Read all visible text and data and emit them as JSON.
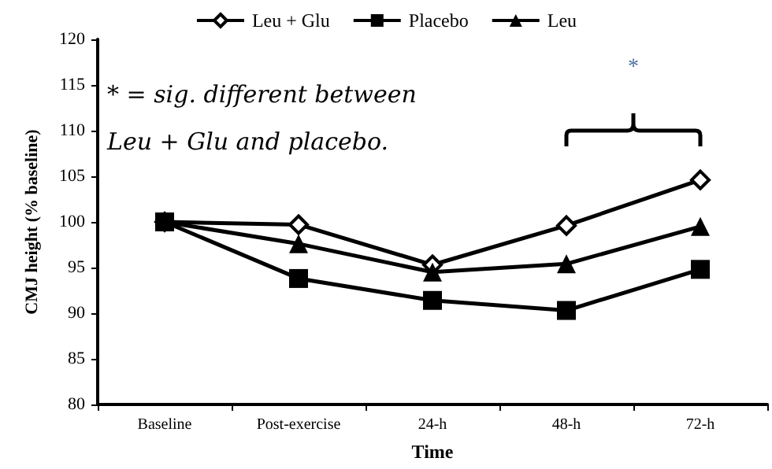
{
  "chart_data": {
    "type": "line",
    "xlabel": "Time",
    "ylabel": "CMJ height (% baseline)",
    "categories": [
      "Baseline",
      "Post-exercise",
      "24-h",
      "48-h",
      "72-h"
    ],
    "series": [
      {
        "name": "Leu + Glu",
        "color": "#000000",
        "marker": "diamond",
        "values": [
          100,
          99.7,
          95.3,
          99.6,
          104.6
        ]
      },
      {
        "name": "Placebo",
        "color": "#000000",
        "marker": "square",
        "values": [
          100,
          93.8,
          91.4,
          90.3,
          94.8
        ]
      },
      {
        "name": "Leu",
        "color": "#000000",
        "marker": "triangle",
        "values": [
          100,
          97.6,
          94.5,
          95.4,
          99.5
        ]
      }
    ],
    "ylim": [
      80,
      120
    ],
    "yticks": [
      80,
      85,
      90,
      95,
      100,
      105,
      110,
      115,
      120
    ],
    "grid": false,
    "legend": "top",
    "line_style": "solid",
    "annotations": [
      "* = sig. different between\nLeu + Glu and placebo.",
      "*"
    ]
  }
}
